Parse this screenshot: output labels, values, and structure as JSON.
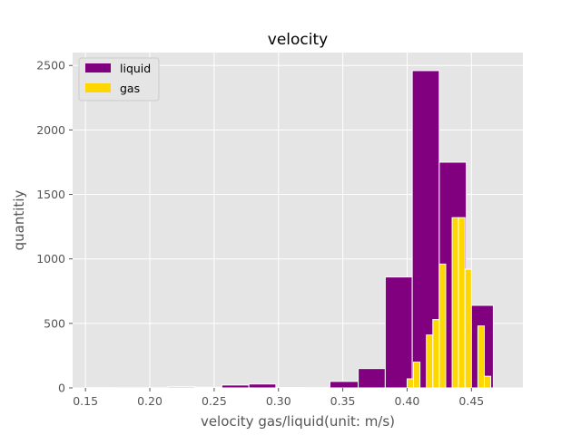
{
  "chart_data": {
    "type": "bar",
    "title": "velocity",
    "xlabel": "velocity gas/liquid(unit: m/s)",
    "ylabel": "quantitiy",
    "xlim": [
      0.14,
      0.49
    ],
    "ylim": [
      0,
      2600
    ],
    "xticks": [
      "0.15",
      "0.20",
      "0.25",
      "0.30",
      "0.35",
      "0.40",
      "0.45"
    ],
    "xtick_values": [
      0.15,
      0.2,
      0.25,
      0.3,
      0.35,
      0.4,
      0.45
    ],
    "yticks": [
      "0",
      "500",
      "1000",
      "1500",
      "2000",
      "2500"
    ],
    "ytick_values": [
      0,
      500,
      1000,
      1500,
      2000,
      2500
    ],
    "grid": true,
    "legend_position": "top-left",
    "series": [
      {
        "name": "liquid",
        "color": "#800080",
        "bins": [
          {
            "x0": 0.151,
            "x1": 0.172,
            "value": 2
          },
          {
            "x0": 0.172,
            "x1": 0.193,
            "value": 1
          },
          {
            "x0": 0.193,
            "x1": 0.214,
            "value": 1
          },
          {
            "x0": 0.214,
            "x1": 0.235,
            "value": 8
          },
          {
            "x0": 0.235,
            "x1": 0.256,
            "value": 5
          },
          {
            "x0": 0.256,
            "x1": 0.277,
            "value": 22
          },
          {
            "x0": 0.277,
            "x1": 0.298,
            "value": 30
          },
          {
            "x0": 0.298,
            "x1": 0.319,
            "value": 3
          },
          {
            "x0": 0.319,
            "x1": 0.34,
            "value": 2
          },
          {
            "x0": 0.34,
            "x1": 0.362,
            "value": 50
          },
          {
            "x0": 0.362,
            "x1": 0.383,
            "value": 150
          },
          {
            "x0": 0.383,
            "x1": 0.404,
            "value": 860
          },
          {
            "x0": 0.404,
            "x1": 0.425,
            "value": 2460
          },
          {
            "x0": 0.425,
            "x1": 0.446,
            "value": 1750
          },
          {
            "x0": 0.446,
            "x1": 0.467,
            "value": 640
          }
        ]
      },
      {
        "name": "gas",
        "color": "#FFD700",
        "bins": [
          {
            "x0": 0.4,
            "x1": 0.405,
            "value": 70
          },
          {
            "x0": 0.405,
            "x1": 0.41,
            "value": 200
          },
          {
            "x0": 0.41,
            "x1": 0.415,
            "value": 0
          },
          {
            "x0": 0.415,
            "x1": 0.42,
            "value": 410
          },
          {
            "x0": 0.42,
            "x1": 0.425,
            "value": 530
          },
          {
            "x0": 0.425,
            "x1": 0.43,
            "value": 960
          },
          {
            "x0": 0.43,
            "x1": 0.435,
            "value": 0
          },
          {
            "x0": 0.435,
            "x1": 0.44,
            "value": 1320
          },
          {
            "x0": 0.44,
            "x1": 0.445,
            "value": 1320
          },
          {
            "x0": 0.445,
            "x1": 0.45,
            "value": 920
          },
          {
            "x0": 0.45,
            "x1": 0.455,
            "value": 0
          },
          {
            "x0": 0.455,
            "x1": 0.46,
            "value": 480
          },
          {
            "x0": 0.46,
            "x1": 0.465,
            "value": 90
          }
        ]
      }
    ]
  }
}
